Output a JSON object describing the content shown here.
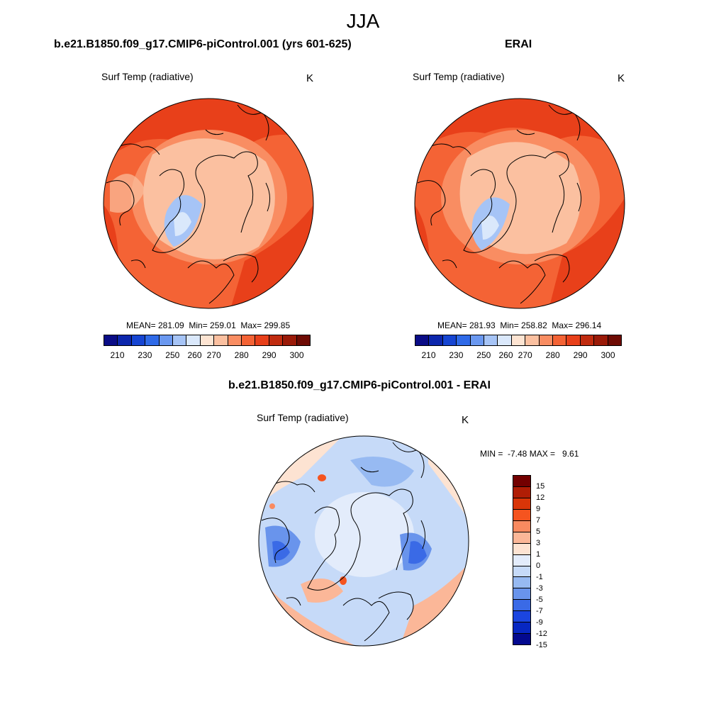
{
  "figure": {
    "title": "JJA"
  },
  "panels": {
    "model": {
      "title": "b.e21.B1850.f09_g17.CMIP6-piControl.001 (yrs 601-625)",
      "field": "Surf Temp (radiative)",
      "units": "K",
      "stats": "MEAN= 281.09  Min= 259.01  Max= 299.85",
      "ticks": [
        "210",
        "230",
        "250",
        "260",
        "270",
        "280",
        "290",
        "300"
      ]
    },
    "obs": {
      "title": "ERAI",
      "field": "Surf Temp (radiative)",
      "units": "K",
      "stats": "MEAN= 281.93  Min= 258.82  Max= 296.14",
      "ticks": [
        "210",
        "230",
        "250",
        "260",
        "270",
        "280",
        "290",
        "300"
      ]
    },
    "diff": {
      "title": "b.e21.B1850.f09_g17.CMIP6-piControl.001 - ERAI",
      "field": "Surf Temp (radiative)",
      "units": "K",
      "stats": "MIN =  -7.48 MAX =   9.61",
      "ticks": [
        "15",
        "12",
        "9",
        "7",
        "5",
        "3",
        "1",
        "0",
        "-1",
        "-3",
        "-5",
        "-7",
        "-9",
        "-12",
        "-15"
      ]
    }
  },
  "colors": {
    "abs_scale": [
      "#0a0c86",
      "#0c26ac",
      "#1645d2",
      "#2f6ae8",
      "#6a98f0",
      "#a6c4f6",
      "#dae8fb",
      "#fde4d2",
      "#fbc0a0",
      "#f98d62",
      "#f46335",
      "#e8401a",
      "#c02b0f",
      "#9a1a08",
      "#6e0b04"
    ],
    "diff_scale": [
      "#730000",
      "#b01d05",
      "#d93508",
      "#f5541f",
      "#f98a60",
      "#fbb798",
      "#fde3d2",
      "#e3ecfb",
      "#c6daf8",
      "#97baf2",
      "#6994ec",
      "#3a6ae6",
      "#1b45e0",
      "#0727c2",
      "#03098f"
    ],
    "coast": "#000000"
  }
}
